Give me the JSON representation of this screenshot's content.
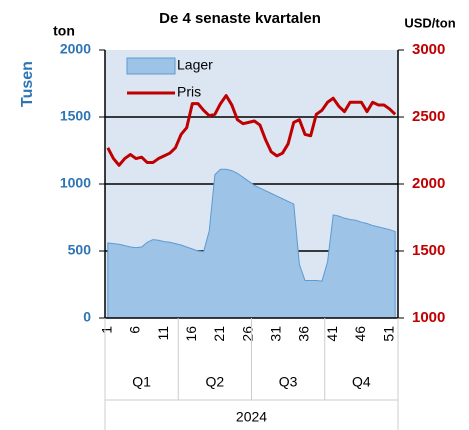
{
  "chart_data": {
    "type": "area-line",
    "title": "De 4 senaste kvartalen",
    "y_unit": "ton",
    "y_label": "Tusen",
    "y2_label": "USD/ton",
    "categories": [
      1,
      null,
      null,
      null,
      null,
      6,
      null,
      null,
      null,
      null,
      11,
      null,
      null,
      null,
      null,
      16,
      null,
      null,
      null,
      null,
      21,
      null,
      null,
      null,
      null,
      26,
      null,
      null,
      null,
      null,
      31,
      null,
      null,
      null,
      null,
      36,
      null,
      null,
      null,
      null,
      41,
      null,
      null,
      null,
      null,
      46,
      null,
      null,
      null,
      null,
      51,
      null
    ],
    "quarters": [
      "Q1",
      "Q2",
      "Q3",
      "Q4"
    ],
    "year": "2024",
    "series": [
      {
        "name": "Lager",
        "color": "#9dc3e6",
        "values": [
          560,
          555,
          550,
          540,
          530,
          525,
          530,
          565,
          585,
          580,
          570,
          565,
          555,
          545,
          530,
          515,
          500,
          495,
          650,
          1070,
          1110,
          1110,
          1100,
          1080,
          1050,
          1020,
          990,
          970,
          950,
          930,
          910,
          890,
          870,
          850,
          400,
          280,
          280,
          280,
          275,
          420,
          770,
          760,
          745,
          735,
          730,
          715,
          705,
          690,
          680,
          670,
          660,
          645
        ]
      },
      {
        "name": "Pris",
        "color": "#c00000",
        "axis": "y2",
        "values": [
          2270,
          2190,
          2140,
          2190,
          2220,
          2190,
          2200,
          2160,
          2160,
          2190,
          2210,
          2230,
          2270,
          2370,
          2420,
          2600,
          2600,
          2550,
          2510,
          2520,
          2600,
          2660,
          2590,
          2480,
          2450,
          2460,
          2470,
          2440,
          2330,
          2240,
          2210,
          2230,
          2300,
          2460,
          2480,
          2370,
          2360,
          2520,
          2550,
          2610,
          2640,
          2580,
          2540,
          2610,
          2610,
          2610,
          2540,
          2610,
          2590,
          2590,
          2560,
          2520
        ]
      }
    ],
    "ylim": [
      0,
      2000
    ],
    "yticks": [
      0,
      500,
      1000,
      1500,
      2000
    ],
    "y2lim": [
      1000,
      3000
    ],
    "y2ticks": [
      1000,
      1500,
      2000,
      2500,
      3000
    ],
    "grid": true,
    "legend": "top-left"
  }
}
